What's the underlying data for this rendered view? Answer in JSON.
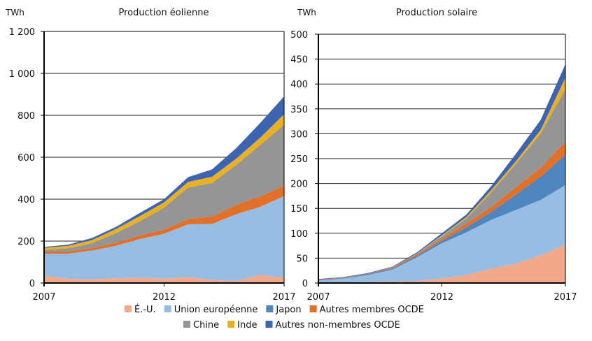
{
  "chart_data": [
    {
      "type": "area",
      "stacked": true,
      "title": "Production éolienne",
      "ylabel": "TWh",
      "xlabel": "",
      "x": [
        2007,
        2008,
        2009,
        2010,
        2011,
        2012,
        2013,
        2014,
        2015,
        2016,
        2017
      ],
      "x_tick_labels": [
        "2007",
        "2012",
        "2017"
      ],
      "y_tick_labels": [
        "0",
        "200",
        "400",
        "600",
        "800",
        "1 000",
        "1 200"
      ],
      "ylim": [
        0,
        1200
      ],
      "grid": true,
      "series": [
        {
          "name": "É.-U.",
          "color": "#f2a98a",
          "values": [
            35,
            20,
            17,
            23,
            25,
            20,
            28,
            14,
            10,
            38,
            25
          ]
        },
        {
          "name": "Union européenne",
          "color": "#98bde3",
          "values": [
            105,
            120,
            138,
            155,
            185,
            215,
            252,
            268,
            318,
            325,
            390
          ]
        },
        {
          "name": "Japon",
          "color": "#4f86c0",
          "values": [
            0,
            0,
            0,
            0,
            0,
            0,
            0,
            0,
            0,
            0,
            0
          ]
        },
        {
          "name": "Autres membres OCDE",
          "color": "#e0702a",
          "values": [
            10,
            10,
            12,
            15,
            17,
            20,
            25,
            35,
            45,
            50,
            50
          ]
        },
        {
          "name": "Chine",
          "color": "#959595",
          "values": [
            8,
            15,
            23,
            45,
            68,
            105,
            150,
            160,
            190,
            245,
            290
          ]
        },
        {
          "name": "Inde",
          "color": "#e8b022",
          "values": [
            10,
            12,
            15,
            20,
            25,
            25,
            27,
            30,
            30,
            35,
            50
          ]
        },
        {
          "name": "Autres non-membres OCDE",
          "color": "#3c64b1",
          "values": [
            4,
            6,
            10,
            10,
            15,
            15,
            23,
            35,
            50,
            70,
            85
          ]
        }
      ]
    },
    {
      "type": "area",
      "stacked": true,
      "title": "Production solaire",
      "ylabel": "TWh",
      "xlabel": "",
      "x": [
        2007,
        2008,
        2009,
        2010,
        2011,
        2012,
        2013,
        2014,
        2015,
        2016,
        2017
      ],
      "x_tick_labels": [
        "2007",
        "2012",
        "2017"
      ],
      "y_tick_labels": [
        "0",
        "50",
        "100",
        "150",
        "200",
        "250",
        "300",
        "350",
        "400",
        "450",
        "500"
      ],
      "ylim": [
        0,
        500
      ],
      "grid": true,
      "series": [
        {
          "name": "É.-U.",
          "color": "#f2a98a",
          "values": [
            1,
            1,
            2,
            3,
            4,
            9,
            16,
            29,
            39,
            56,
            77
          ]
        },
        {
          "name": "Union européenne",
          "color": "#98bde3",
          "values": [
            4,
            8,
            14,
            24,
            48,
            71,
            86,
            98,
            108,
            111,
            120
          ]
        },
        {
          "name": "Japon",
          "color": "#4f86c0",
          "values": [
            1,
            1,
            2,
            2,
            3,
            5,
            10,
            16,
            31,
            47,
            61
          ]
        },
        {
          "name": "Autres membres OCDE",
          "color": "#e0702a",
          "values": [
            1,
            1,
            1,
            2,
            3,
            4,
            8,
            10,
            15,
            18,
            26
          ]
        },
        {
          "name": "Chine",
          "color": "#959595",
          "values": [
            0,
            0,
            0,
            1,
            2,
            5,
            10,
            29,
            47,
            68,
            106
          ]
        },
        {
          "name": "Inde",
          "color": "#e8b022",
          "values": [
            0,
            0,
            0,
            0,
            0,
            2,
            3,
            5,
            5,
            8,
            23
          ]
        },
        {
          "name": "Autres non-membres OCDE",
          "color": "#3c64b1",
          "values": [
            1,
            1,
            1,
            1,
            2,
            4,
            5,
            8,
            15,
            20,
            27
          ]
        }
      ]
    }
  ],
  "legend": {
    "placement": "bottom",
    "items": [
      {
        "label": "É.-U.",
        "color": "#f2a98a"
      },
      {
        "label": "Union européenne",
        "color": "#98bde3"
      },
      {
        "label": "Japon",
        "color": "#4f86c0"
      },
      {
        "label": "Autres membres OCDE",
        "color": "#e0702a"
      },
      {
        "label": "Chine",
        "color": "#959595"
      },
      {
        "label": "Inde",
        "color": "#e8b022"
      },
      {
        "label": "Autres non-membres OCDE",
        "color": "#3c64b1"
      }
    ]
  }
}
